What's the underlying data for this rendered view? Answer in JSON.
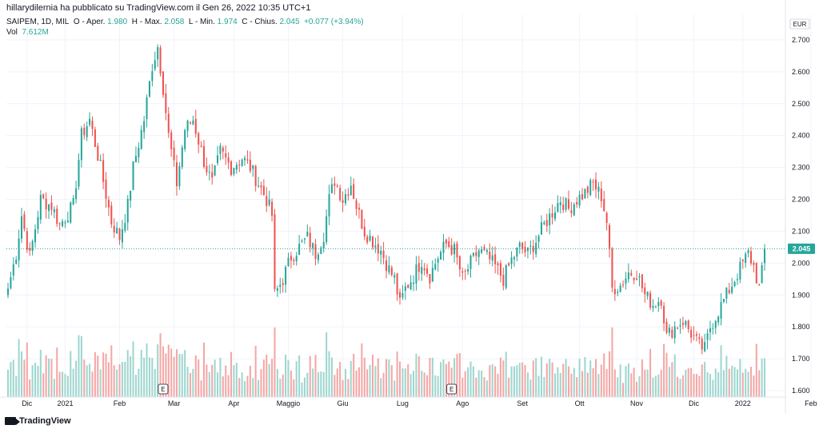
{
  "caption": "hillarydilernia ha pubblicato su TradingView.com il Gen 26, 2022 10:35 UTC+1",
  "legend": {
    "symbol": "SAIPEM, 1D, MIL",
    "open_label": "O - Aper.",
    "open": "1.980",
    "high_label": "H - Max.",
    "high": "2.058",
    "low_label": "L - Min.",
    "low": "1.974",
    "close_label": "C - Chius.",
    "close": "2.045",
    "change": "+0.077 (+3.94%)"
  },
  "volume": {
    "label": "Vol",
    "value": "7.612M"
  },
  "brand": "TradingView",
  "colors": {
    "up": "#26a69a",
    "down": "#ef5350",
    "up_vol": "#9fd6cf",
    "down_vol": "#f4a7a5",
    "last_price_bg": "#26a69a"
  },
  "chart_data": {
    "type": "candlestick",
    "currency": "EUR",
    "last_price": "2.045",
    "ylim": [
      1.58,
      2.78
    ],
    "yticks": [
      "1.600",
      "1.700",
      "1.800",
      "1.900",
      "2.000",
      "2.100",
      "2.200",
      "2.300",
      "2.400",
      "2.500",
      "2.600",
      "2.700"
    ],
    "xticks": [
      {
        "label": "Dic",
        "i": 7
      },
      {
        "label": "2021",
        "i": 21
      },
      {
        "label": "Feb",
        "i": 41
      },
      {
        "label": "Mar",
        "i": 61
      },
      {
        "label": "Apr",
        "i": 83
      },
      {
        "label": "Maggio",
        "i": 103
      },
      {
        "label": "Giu",
        "i": 123
      },
      {
        "label": "Lug",
        "i": 145
      },
      {
        "label": "Ago",
        "i": 167
      },
      {
        "label": "Set",
        "i": 189
      },
      {
        "label": "Ott",
        "i": 210
      },
      {
        "label": "Nov",
        "i": 231
      },
      {
        "label": "Dic",
        "i": 252
      },
      {
        "label": "2022",
        "i": 270
      },
      {
        "label": "Feb",
        "i": 295
      }
    ],
    "earnings_markers": [
      {
        "label": "E",
        "i": 57
      },
      {
        "label": "E",
        "i": 163
      }
    ],
    "close_anchors": [
      [
        0,
        1.92
      ],
      [
        3,
        2.03
      ],
      [
        5,
        2.15
      ],
      [
        8,
        2.02
      ],
      [
        12,
        2.2
      ],
      [
        16,
        2.18
      ],
      [
        19,
        2.12
      ],
      [
        24,
        2.18
      ],
      [
        27,
        2.4
      ],
      [
        30,
        2.45
      ],
      [
        34,
        2.3
      ],
      [
        38,
        2.13
      ],
      [
        41,
        2.08
      ],
      [
        44,
        2.18
      ],
      [
        46,
        2.3
      ],
      [
        50,
        2.45
      ],
      [
        53,
        2.62
      ],
      [
        55,
        2.68
      ],
      [
        57,
        2.55
      ],
      [
        59,
        2.4
      ],
      [
        62,
        2.25
      ],
      [
        65,
        2.42
      ],
      [
        68,
        2.45
      ],
      [
        72,
        2.32
      ],
      [
        75,
        2.25
      ],
      [
        78,
        2.35
      ],
      [
        82,
        2.3
      ],
      [
        86,
        2.33
      ],
      [
        89,
        2.3
      ],
      [
        92,
        2.25
      ],
      [
        95,
        2.2
      ],
      [
        97,
        2.15
      ],
      [
        98,
        1.9
      ],
      [
        101,
        1.95
      ],
      [
        104,
        2.02
      ],
      [
        107,
        2.05
      ],
      [
        110,
        2.08
      ],
      [
        113,
        2.03
      ],
      [
        116,
        2.09
      ],
      [
        118,
        2.2
      ],
      [
        120,
        2.26
      ],
      [
        123,
        2.2
      ],
      [
        126,
        2.25
      ],
      [
        128,
        2.18
      ],
      [
        131,
        2.1
      ],
      [
        134,
        2.07
      ],
      [
        137,
        2.04
      ],
      [
        140,
        1.98
      ],
      [
        142,
        1.95
      ],
      [
        144,
        1.87
      ],
      [
        146,
        1.92
      ],
      [
        149,
        1.96
      ],
      [
        152,
        2.01
      ],
      [
        155,
        1.96
      ],
      [
        158,
        2.02
      ],
      [
        161,
        2.06
      ],
      [
        164,
        2.04
      ],
      [
        167,
        1.95
      ],
      [
        170,
        2.0
      ],
      [
        173,
        2.04
      ],
      [
        176,
        2.02
      ],
      [
        179,
        1.99
      ],
      [
        182,
        1.95
      ],
      [
        185,
        2.01
      ],
      [
        188,
        2.05
      ],
      [
        191,
        2.03
      ],
      [
        194,
        2.07
      ],
      [
        197,
        2.12
      ],
      [
        200,
        2.16
      ],
      [
        203,
        2.2
      ],
      [
        206,
        2.17
      ],
      [
        209,
        2.2
      ],
      [
        212,
        2.22
      ],
      [
        215,
        2.25
      ],
      [
        218,
        2.21
      ],
      [
        220,
        2.13
      ],
      [
        222,
        1.92
      ],
      [
        225,
        1.93
      ],
      [
        228,
        1.97
      ],
      [
        231,
        1.97
      ],
      [
        234,
        1.9
      ],
      [
        237,
        1.87
      ],
      [
        240,
        1.89
      ],
      [
        242,
        1.77
      ],
      [
        245,
        1.8
      ],
      [
        248,
        1.82
      ],
      [
        251,
        1.78
      ],
      [
        254,
        1.74
      ],
      [
        256,
        1.73
      ],
      [
        258,
        1.8
      ],
      [
        261,
        1.85
      ],
      [
        264,
        1.9
      ],
      [
        267,
        1.95
      ],
      [
        270,
        2.0
      ],
      [
        272,
        2.03
      ],
      [
        274,
        1.99
      ],
      [
        276,
        1.92
      ],
      [
        277,
        1.97
      ],
      [
        278,
        2.045
      ]
    ],
    "volume_range": [
      0,
      120
    ]
  }
}
